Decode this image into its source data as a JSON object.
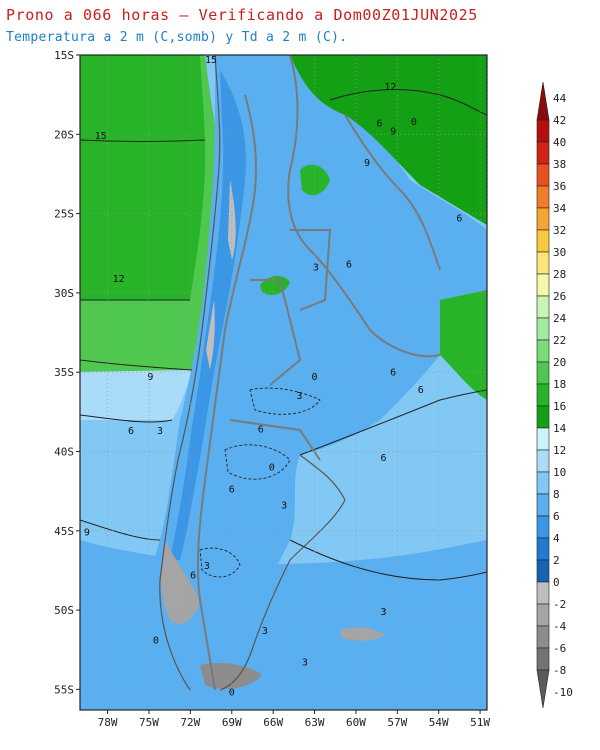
{
  "header": {
    "title": "Prono a 066 horas — Verificando a Dom00Z01JUN2025",
    "subtitle": "Temperatura a 2 m (C,somb) y Td a 2 m (C)."
  },
  "axes": {
    "lat_labels": [
      "15S",
      "20S",
      "25S",
      "30S",
      "35S",
      "40S",
      "45S",
      "50S",
      "55S"
    ],
    "lon_labels": [
      "78W",
      "75W",
      "72W",
      "69W",
      "66W",
      "63W",
      "60W",
      "57W",
      "54W",
      "51W"
    ]
  },
  "colorbar": {
    "labels": [
      "44",
      "42",
      "40",
      "38",
      "36",
      "34",
      "32",
      "30",
      "28",
      "26",
      "24",
      "22",
      "20",
      "18",
      "16",
      "14",
      "12",
      "10",
      "8",
      "6",
      "4",
      "2",
      "0",
      "-2",
      "-4",
      "-6",
      "-8",
      "-10"
    ],
    "colors": [
      "#8b0a0a",
      "#b40f0f",
      "#d22414",
      "#e8501e",
      "#f07d28",
      "#f5a532",
      "#fac83c",
      "#fae678",
      "#f0faaa",
      "#c8f5b4",
      "#a0eba0",
      "#78dc78",
      "#50c850",
      "#28b428",
      "#14a014",
      "#c8f5fa",
      "#aadcfa",
      "#82c8f5",
      "#5aaff0",
      "#3c96e6",
      "#2378d2",
      "#1464b4",
      "#bebebe",
      "#a5a5a5",
      "#8c8c8c",
      "#737373",
      "#5a5a5a"
    ]
  },
  "contour_labels": [
    {
      "text": "15",
      "lon": -70.5,
      "lat": -15.5
    },
    {
      "text": "15",
      "lon": -78.5,
      "lat": -20.3
    },
    {
      "text": "12",
      "lon": -57.5,
      "lat": -17.2
    },
    {
      "text": "9",
      "lon": -57.3,
      "lat": -20.0
    },
    {
      "text": "9",
      "lon": -59.2,
      "lat": -22.0
    },
    {
      "text": "6",
      "lon": -58.3,
      "lat": -19.5
    },
    {
      "text": "0",
      "lon": -55.8,
      "lat": -19.4
    },
    {
      "text": "6",
      "lon": -52.5,
      "lat": -25.5
    },
    {
      "text": "12",
      "lon": -77.2,
      "lat": -29.3
    },
    {
      "text": "6",
      "lon": -60.5,
      "lat": -28.4
    },
    {
      "text": "3",
      "lon": -62.9,
      "lat": -28.6
    },
    {
      "text": "9",
      "lon": -74.9,
      "lat": -35.5
    },
    {
      "text": "6",
      "lon": -57.3,
      "lat": -35.2
    },
    {
      "text": "6",
      "lon": -55.3,
      "lat": -36.3
    },
    {
      "text": "0",
      "lon": -63.0,
      "lat": -35.5
    },
    {
      "text": "3",
      "lon": -64.1,
      "lat": -36.7
    },
    {
      "text": "6",
      "lon": -76.3,
      "lat": -38.9
    },
    {
      "text": "3",
      "lon": -74.2,
      "lat": -38.9
    },
    {
      "text": "6",
      "lon": -66.9,
      "lat": -38.8
    },
    {
      "text": "6",
      "lon": -58.0,
      "lat": -40.6
    },
    {
      "text": "0",
      "lon": -66.1,
      "lat": -41.2
    },
    {
      "text": "6",
      "lon": -69.0,
      "lat": -42.6
    },
    {
      "text": "9",
      "lon": -79.5,
      "lat": -45.3
    },
    {
      "text": "3",
      "lon": -65.2,
      "lat": -43.6
    },
    {
      "text": "3",
      "lon": -70.8,
      "lat": -47.4
    },
    {
      "text": "6",
      "lon": -71.8,
      "lat": -48.0
    },
    {
      "text": "3",
      "lon": -58.0,
      "lat": -50.3
    },
    {
      "text": "3",
      "lon": -66.6,
      "lat": -51.5
    },
    {
      "text": "0",
      "lon": -74.5,
      "lat": -52.1
    },
    {
      "text": "3",
      "lon": -63.7,
      "lat": -53.5
    },
    {
      "text": "0",
      "lon": -69.0,
      "lat": -55.4
    }
  ]
}
